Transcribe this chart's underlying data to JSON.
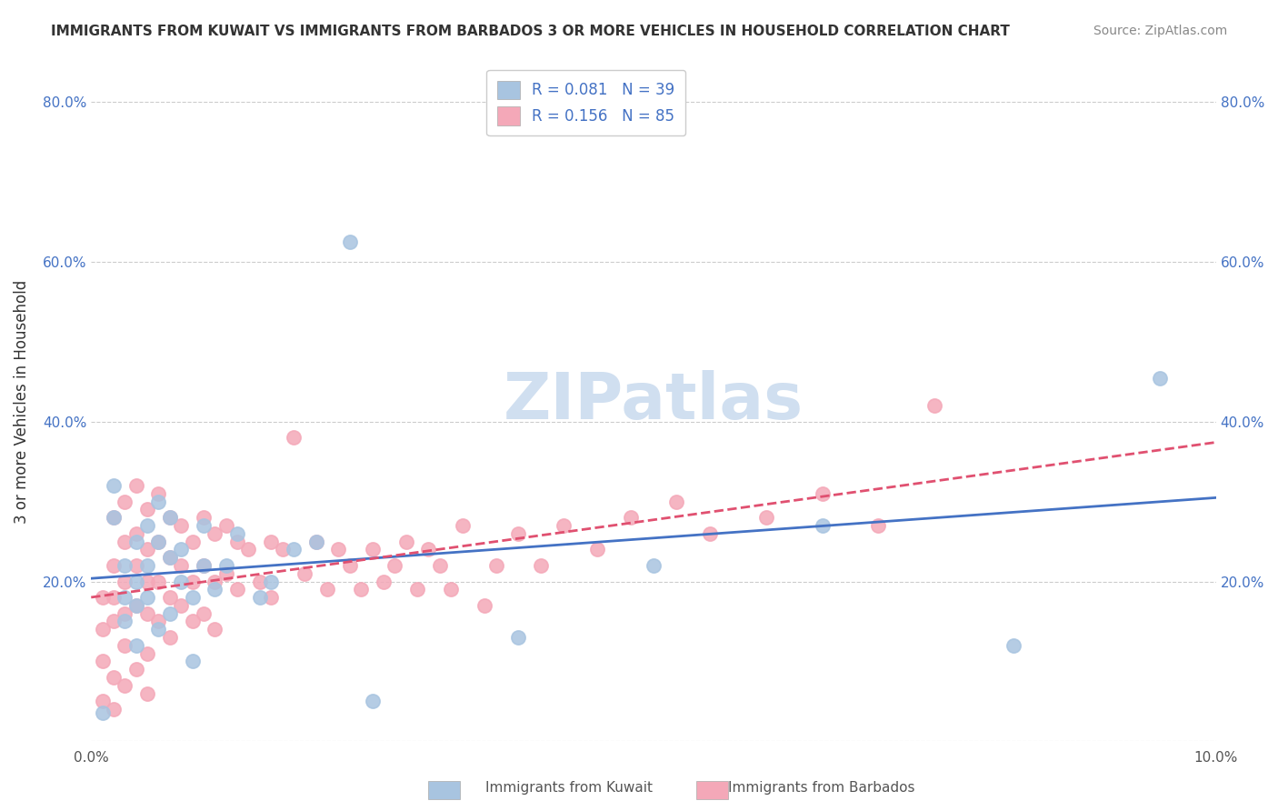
{
  "title": "IMMIGRANTS FROM KUWAIT VS IMMIGRANTS FROM BARBADOS 3 OR MORE VEHICLES IN HOUSEHOLD CORRELATION CHART",
  "source": "Source: ZipAtlas.com",
  "xlabel": "",
  "ylabel": "3 or more Vehicles in Household",
  "xlim": [
    0.0,
    0.1
  ],
  "ylim": [
    0.0,
    0.85
  ],
  "xticks": [
    0.0,
    0.02,
    0.04,
    0.06,
    0.08,
    0.1
  ],
  "xtick_labels": [
    "0.0%",
    "",
    "",
    "",
    "",
    "10.0%"
  ],
  "yticks": [
    0.0,
    0.2,
    0.4,
    0.6,
    0.8
  ],
  "ytick_labels": [
    "",
    "20.0%",
    "40.0%",
    "60.0%",
    "80.0%"
  ],
  "legend1_label": "Immigrants from Kuwait",
  "legend2_label": "Immigrants from Barbados",
  "R_kuwait": 0.081,
  "N_kuwait": 39,
  "R_barbados": 0.156,
  "N_barbados": 85,
  "color_kuwait": "#a8c4e0",
  "color_barbados": "#f4a8b8",
  "line_color_kuwait": "#4472c4",
  "line_color_barbados": "#e05070",
  "watermark": "ZIPatlas",
  "watermark_color": "#d0dff0",
  "kuwait_x": [
    0.001,
    0.002,
    0.002,
    0.003,
    0.003,
    0.003,
    0.004,
    0.004,
    0.004,
    0.004,
    0.005,
    0.005,
    0.005,
    0.006,
    0.006,
    0.006,
    0.007,
    0.007,
    0.007,
    0.008,
    0.008,
    0.009,
    0.009,
    0.01,
    0.01,
    0.011,
    0.012,
    0.013,
    0.015,
    0.016,
    0.018,
    0.02,
    0.023,
    0.025,
    0.038,
    0.05,
    0.065,
    0.082,
    0.095
  ],
  "kuwait_y": [
    0.035,
    0.32,
    0.28,
    0.22,
    0.18,
    0.15,
    0.25,
    0.2,
    0.17,
    0.12,
    0.27,
    0.22,
    0.18,
    0.3,
    0.25,
    0.14,
    0.28,
    0.23,
    0.16,
    0.24,
    0.2,
    0.18,
    0.1,
    0.27,
    0.22,
    0.19,
    0.22,
    0.26,
    0.18,
    0.2,
    0.24,
    0.25,
    0.625,
    0.05,
    0.13,
    0.22,
    0.27,
    0.12,
    0.455
  ],
  "barbados_x": [
    0.001,
    0.001,
    0.001,
    0.001,
    0.002,
    0.002,
    0.002,
    0.002,
    0.002,
    0.002,
    0.003,
    0.003,
    0.003,
    0.003,
    0.003,
    0.003,
    0.004,
    0.004,
    0.004,
    0.004,
    0.004,
    0.005,
    0.005,
    0.005,
    0.005,
    0.005,
    0.005,
    0.006,
    0.006,
    0.006,
    0.006,
    0.007,
    0.007,
    0.007,
    0.007,
    0.008,
    0.008,
    0.008,
    0.009,
    0.009,
    0.009,
    0.01,
    0.01,
    0.01,
    0.011,
    0.011,
    0.011,
    0.012,
    0.012,
    0.013,
    0.013,
    0.014,
    0.015,
    0.016,
    0.016,
    0.017,
    0.018,
    0.019,
    0.02,
    0.021,
    0.022,
    0.023,
    0.024,
    0.025,
    0.026,
    0.027,
    0.028,
    0.029,
    0.03,
    0.031,
    0.032,
    0.033,
    0.035,
    0.036,
    0.038,
    0.04,
    0.042,
    0.045,
    0.048,
    0.052,
    0.055,
    0.06,
    0.065,
    0.07,
    0.075
  ],
  "barbados_y": [
    0.18,
    0.14,
    0.1,
    0.05,
    0.28,
    0.22,
    0.18,
    0.15,
    0.08,
    0.04,
    0.3,
    0.25,
    0.2,
    0.16,
    0.12,
    0.07,
    0.32,
    0.26,
    0.22,
    0.17,
    0.09,
    0.29,
    0.24,
    0.2,
    0.16,
    0.11,
    0.06,
    0.31,
    0.25,
    0.2,
    0.15,
    0.28,
    0.23,
    0.18,
    0.13,
    0.27,
    0.22,
    0.17,
    0.25,
    0.2,
    0.15,
    0.28,
    0.22,
    0.16,
    0.26,
    0.2,
    0.14,
    0.27,
    0.21,
    0.25,
    0.19,
    0.24,
    0.2,
    0.25,
    0.18,
    0.24,
    0.38,
    0.21,
    0.25,
    0.19,
    0.24,
    0.22,
    0.19,
    0.24,
    0.2,
    0.22,
    0.25,
    0.19,
    0.24,
    0.22,
    0.19,
    0.27,
    0.17,
    0.22,
    0.26,
    0.22,
    0.27,
    0.24,
    0.28,
    0.3,
    0.26,
    0.28,
    0.31,
    0.27,
    0.42
  ]
}
